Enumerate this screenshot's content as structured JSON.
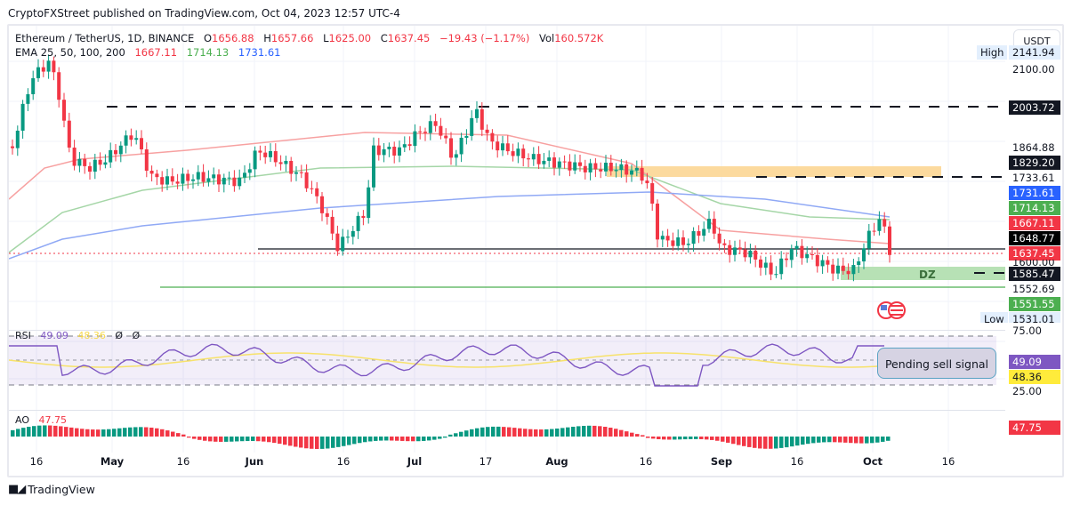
{
  "publisher": "CryptoFXStreet published on TradingView.com, Oct 04, 2023 12:57 UTC-4",
  "symbol": {
    "name": "Ethereum / TetherUS, 1D, BINANCE",
    "open_label": "O",
    "open": "1656.88",
    "high_label": "H",
    "high": "1657.66",
    "low_label": "L",
    "low": "1625.00",
    "close_label": "C",
    "close": "1637.45",
    "change": "−19.43 (−1.17%)",
    "vol_label": "Vol",
    "vol": "160.572K"
  },
  "ema": {
    "label": "EMA 25, 50, 100, 200",
    "v1": "1667.11",
    "v2": "1714.13",
    "v3": "1731.61"
  },
  "currency_button": "USDT",
  "price_scale": {
    "high_tag": "High",
    "high_value": "2141.94",
    "ticks": [
      "2100.00",
      "1864.88",
      "1733.61",
      "1552.69"
    ],
    "partial_tick": "1600.00",
    "low_tag": "Low",
    "low_value": "1531.01",
    "labels": [
      {
        "value": "2003.72",
        "style": "dark"
      },
      {
        "value": "1829.20",
        "style": "dark"
      },
      {
        "value": "1731.61",
        "style": "blue"
      },
      {
        "value": "1714.13",
        "style": "green"
      },
      {
        "value": "1667.11",
        "style": "red"
      },
      {
        "value": "1648.77",
        "style": "black"
      },
      {
        "value": "1637.45",
        "style": "red"
      },
      {
        "value": "1585.47",
        "style": "dark"
      },
      {
        "value": "1551.55",
        "style": "green"
      }
    ]
  },
  "annotations": {
    "demand_zone": "DZ",
    "callout": "Pending sell signal"
  },
  "rsi": {
    "label": "RSI",
    "value": "49.09",
    "ma": "48.36",
    "extra1": "Ø",
    "extra2": "Ø",
    "ticks": [
      "75.00",
      "25.00"
    ],
    "value_tag": "49.09",
    "ma_tag": "48.36"
  },
  "ao": {
    "label": "AO",
    "value": "47.75",
    "value_tag": "47.75"
  },
  "x_axis": [
    "16",
    "May",
    "16",
    "Jun",
    "16",
    "Jul",
    "17",
    "Aug",
    "16",
    "Sep",
    "16",
    "Oct",
    "16"
  ],
  "branding": "TradingView",
  "colors": {
    "up": "#089981",
    "down": "#f23645",
    "ema25": "#f7a1a1",
    "ema50": "#a5d6a7",
    "ema100": "#90a9f5",
    "rsi": "#7e57c2",
    "rsi_ma": "#f7e26b",
    "zone_orange": "#fbd38d",
    "zone_green": "#b7e1b5"
  }
}
